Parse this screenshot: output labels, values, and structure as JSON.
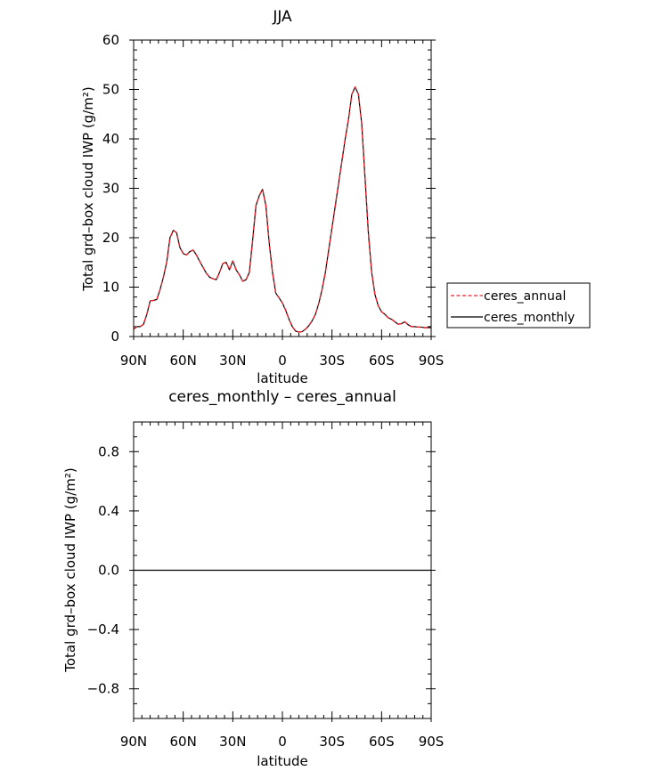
{
  "chart_data": [
    {
      "type": "line",
      "title": "JJA",
      "xlabel": "latitude",
      "ylabel": "Total grd–box cloud IWP (g/m²)",
      "xlim": [
        -90,
        90
      ],
      "ylim": [
        0,
        60
      ],
      "xticks": [
        -90,
        -60,
        -30,
        0,
        30,
        60,
        90
      ],
      "xtick_labels": [
        "90N",
        "60N",
        "30N",
        "0",
        "30S",
        "60S",
        "90S"
      ],
      "yticks": [
        0,
        10,
        20,
        30,
        40,
        50,
        60
      ],
      "ytick_labels": [
        "0",
        "10",
        "20",
        "30",
        "40",
        "50",
        "60"
      ],
      "grid": false,
      "legend_position": "right",
      "series": [
        {
          "name": "ceres_annual",
          "color": "#e8202a",
          "dashed": true,
          "x": [
            -90,
            -88,
            -86,
            -84,
            -82,
            -80,
            -78,
            -76,
            -74,
            -72,
            -70,
            -68,
            -66,
            -64,
            -62,
            -60,
            -58,
            -56,
            -54,
            -52,
            -50,
            -48,
            -46,
            -44,
            -42,
            -40,
            -38,
            -36,
            -34,
            -32,
            -30,
            -28,
            -26,
            -24,
            -22,
            -20,
            -18,
            -16,
            -14,
            -12,
            -10,
            -8,
            -6,
            -4,
            -2,
            0,
            2,
            4,
            6,
            8,
            10,
            12,
            14,
            16,
            18,
            20,
            22,
            24,
            26,
            28,
            30,
            32,
            34,
            36,
            38,
            40,
            42,
            44,
            46,
            48,
            50,
            52,
            54,
            56,
            58,
            60,
            62,
            64,
            66,
            68,
            70,
            72,
            74,
            76,
            78,
            80,
            82,
            84,
            86,
            88,
            90
          ],
          "y": [
            1.5,
            2.0,
            2.0,
            2.5,
            4.5,
            7.2,
            7.3,
            7.5,
            9.5,
            12.0,
            15.0,
            20.0,
            21.5,
            21.0,
            18.0,
            16.8,
            16.5,
            17.2,
            17.5,
            16.5,
            15.2,
            14.0,
            12.8,
            12.0,
            11.7,
            11.5,
            13.0,
            14.8,
            15.0,
            13.5,
            15.3,
            13.5,
            12.5,
            11.2,
            11.5,
            13.0,
            19.5,
            26.5,
            28.5,
            29.8,
            26.5,
            19.0,
            13.0,
            8.8,
            7.8,
            6.8,
            5.3,
            3.5,
            2.0,
            1.1,
            0.9,
            1.0,
            1.5,
            2.2,
            3.2,
            4.5,
            6.7,
            9.5,
            13.0,
            17.5,
            22.0,
            26.5,
            31.0,
            35.5,
            40.0,
            44.0,
            49.0,
            50.5,
            49.0,
            43.0,
            32.0,
            21.0,
            13.0,
            8.5,
            6.2,
            5.0,
            4.5,
            3.8,
            3.5,
            3.0,
            2.5,
            2.6,
            3.0,
            2.4,
            2.0,
            2.0,
            1.9,
            1.9,
            1.8,
            1.8,
            1.8
          ]
        },
        {
          "name": "ceres_monthly",
          "color": "#000000",
          "dashed": false,
          "x": [
            -90,
            -88,
            -86,
            -84,
            -82,
            -80,
            -78,
            -76,
            -74,
            -72,
            -70,
            -68,
            -66,
            -64,
            -62,
            -60,
            -58,
            -56,
            -54,
            -52,
            -50,
            -48,
            -46,
            -44,
            -42,
            -40,
            -38,
            -36,
            -34,
            -32,
            -30,
            -28,
            -26,
            -24,
            -22,
            -20,
            -18,
            -16,
            -14,
            -12,
            -10,
            -8,
            -6,
            -4,
            -2,
            0,
            2,
            4,
            6,
            8,
            10,
            12,
            14,
            16,
            18,
            20,
            22,
            24,
            26,
            28,
            30,
            32,
            34,
            36,
            38,
            40,
            42,
            44,
            46,
            48,
            50,
            52,
            54,
            56,
            58,
            60,
            62,
            64,
            66,
            68,
            70,
            72,
            74,
            76,
            78,
            80,
            82,
            84,
            86,
            88,
            90
          ],
          "y": [
            1.5,
            2.0,
            2.0,
            2.5,
            4.5,
            7.2,
            7.3,
            7.5,
            9.5,
            12.0,
            15.0,
            20.0,
            21.5,
            21.0,
            18.0,
            16.8,
            16.5,
            17.2,
            17.5,
            16.5,
            15.2,
            14.0,
            12.8,
            12.0,
            11.7,
            11.5,
            13.0,
            14.8,
            15.0,
            13.5,
            15.3,
            13.5,
            12.5,
            11.2,
            11.5,
            13.0,
            19.5,
            26.5,
            28.5,
            29.8,
            26.5,
            19.0,
            13.0,
            8.8,
            7.8,
            6.8,
            5.3,
            3.5,
            2.0,
            1.1,
            0.9,
            1.0,
            1.5,
            2.2,
            3.2,
            4.5,
            6.7,
            9.5,
            13.0,
            17.5,
            22.0,
            26.5,
            31.0,
            35.5,
            40.0,
            44.0,
            49.0,
            50.5,
            49.0,
            43.0,
            32.0,
            21.0,
            13.0,
            8.5,
            6.2,
            5.0,
            4.5,
            3.8,
            3.5,
            3.0,
            2.5,
            2.6,
            3.0,
            2.4,
            2.0,
            2.0,
            1.9,
            1.9,
            1.8,
            1.8,
            1.8
          ]
        }
      ]
    },
    {
      "type": "line",
      "title": "ceres_monthly – ceres_annual",
      "xlabel": "latitude",
      "ylabel": "Total grd–box cloud IWP (g/m²)",
      "xlim": [
        -90,
        90
      ],
      "ylim": [
        -1.0,
        1.0
      ],
      "xticks": [
        -90,
        -60,
        -30,
        0,
        30,
        60,
        90
      ],
      "xtick_labels": [
        "90N",
        "60N",
        "30N",
        "0",
        "30S",
        "60S",
        "90S"
      ],
      "yticks": [
        -0.8,
        -0.4,
        0.0,
        0.4,
        0.8
      ],
      "ytick_labels": [
        "−0.8",
        "−0.4",
        "0.0",
        "0.4",
        "0.8"
      ],
      "grid": false,
      "series": [
        {
          "color": "#000000",
          "dashed": false,
          "x": [
            -90,
            90
          ],
          "y": [
            0,
            0
          ]
        }
      ]
    }
  ]
}
